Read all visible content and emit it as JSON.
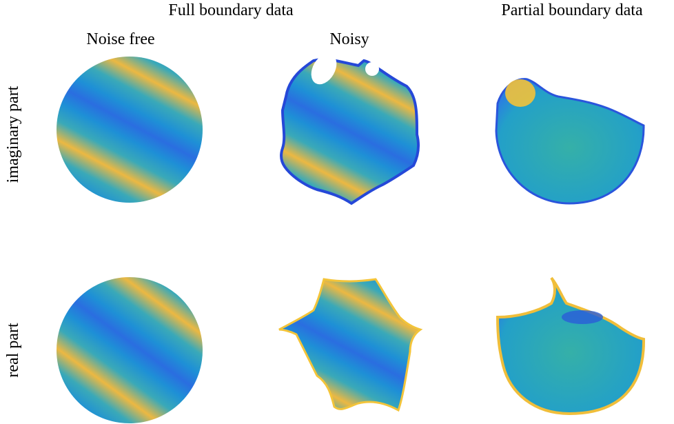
{
  "header": {
    "full": "Full boundary data",
    "partial": "Partial boundary data"
  },
  "columns": [
    "Noise free",
    "Noisy"
  ],
  "rows": [
    "imaginary part",
    "real part"
  ]
}
